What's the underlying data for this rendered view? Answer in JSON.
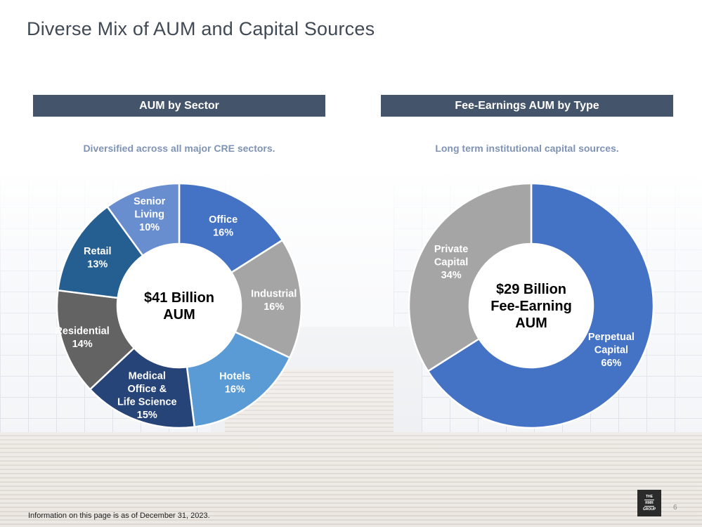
{
  "page": {
    "title": "Diverse Mix of AUM and Capital Sources",
    "footnote": "Information on this page is as of December 31, 2023.",
    "page_number": "6",
    "logo_lines": [
      "THE",
      "RMR",
      "GROUP"
    ]
  },
  "colors": {
    "header_bg": "#44546a",
    "subtitle": "#7f93b5",
    "office": "#4472c4",
    "industrial": "#a5a5a5",
    "hotels": "#5b9bd5",
    "medical": "#264478",
    "residential": "#636363",
    "retail": "#255e91",
    "senior": "#698ed0",
    "perpetual": "#4472c4",
    "private": "#a5a5a5"
  },
  "chart_data": [
    {
      "type": "pie",
      "variant": "donut",
      "header": "AUM by Sector",
      "subtitle": "Diversified across all major CRE sectors.",
      "center_label": [
        "$41 Billion",
        "AUM"
      ],
      "slices": [
        {
          "key": "office",
          "label": [
            "Office"
          ],
          "value": 16,
          "pct_label": "16%"
        },
        {
          "key": "industrial",
          "label": [
            "Industrial"
          ],
          "value": 16,
          "pct_label": "16%"
        },
        {
          "key": "hotels",
          "label": [
            "Hotels"
          ],
          "value": 16,
          "pct_label": "16%"
        },
        {
          "key": "medical",
          "label": [
            "Medical",
            "Office &",
            "Life Science"
          ],
          "value": 15,
          "pct_label": "15%"
        },
        {
          "key": "residential",
          "label": [
            "Residential"
          ],
          "value": 14,
          "pct_label": "14%"
        },
        {
          "key": "retail",
          "label": [
            "Retail"
          ],
          "value": 13,
          "pct_label": "13%"
        },
        {
          "key": "senior",
          "label": [
            "Senior",
            "Living"
          ],
          "value": 10,
          "pct_label": "10%"
        }
      ]
    },
    {
      "type": "pie",
      "variant": "donut",
      "header": "Fee-Earnings AUM by Type",
      "subtitle": "Long term institutional capital sources.",
      "center_label": [
        "$29 Billion",
        "Fee-Earning",
        "AUM"
      ],
      "slices": [
        {
          "key": "perpetual",
          "label": [
            "Perpetual",
            "Capital"
          ],
          "value": 66,
          "pct_label": "66%"
        },
        {
          "key": "private",
          "label": [
            "Private",
            "Capital"
          ],
          "value": 34,
          "pct_label": "34%"
        }
      ]
    }
  ]
}
